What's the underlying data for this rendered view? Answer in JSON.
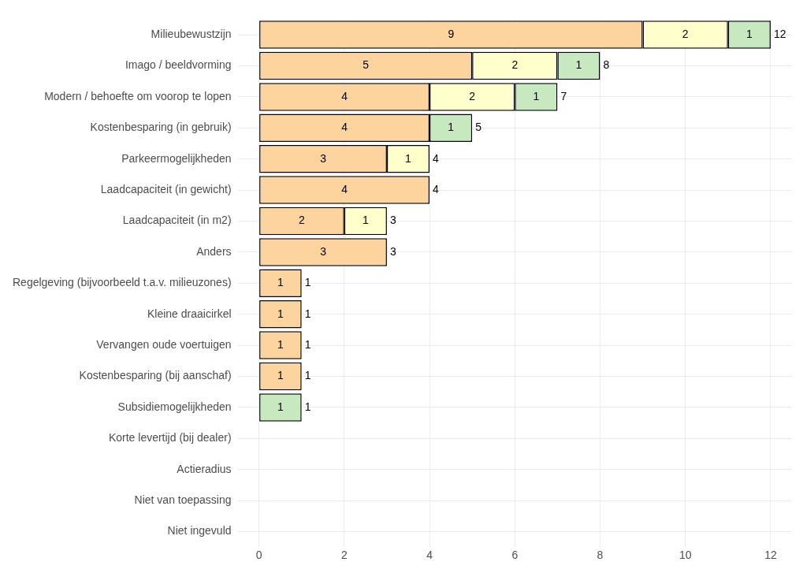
{
  "chart_data": {
    "type": "bar",
    "orientation": "horizontal",
    "stacked": true,
    "data_labels": true,
    "grid": true,
    "legend": false,
    "categories": [
      "Milieubewustzijn",
      "Imago / beeldvorming",
      "Modern / behoefte om voorop te lopen",
      "Kostenbesparing (in gebruik)",
      "Parkeermogelijkheden",
      "Laadcapaciteit (in gewicht)",
      "Laadcapaciteit (in m2)",
      "Anders",
      "Regelgeving (bijvoorbeeld t.a.v. milieuzones)",
      "Kleine draaicirkel",
      "Vervangen oude voertuigen",
      "Kostenbesparing (bij aanschaf)",
      "Subsidiemogelijkheden",
      "Korte levertijd (bij dealer)",
      "Actieradius",
      "Niet van toepassing",
      "Niet ingevuld"
    ],
    "series": [
      {
        "color": "#fdd49e",
        "values": [
          9,
          5,
          4,
          4,
          3,
          4,
          2,
          3,
          1,
          1,
          1,
          1,
          null,
          null,
          null,
          null,
          null
        ]
      },
      {
        "color": "#ffffcc",
        "values": [
          2,
          2,
          2,
          null,
          1,
          null,
          1,
          null,
          null,
          null,
          null,
          null,
          null,
          null,
          null,
          null,
          null
        ]
      },
      {
        "color": "#c7e9c0",
        "values": [
          1,
          1,
          1,
          1,
          null,
          null,
          null,
          null,
          null,
          null,
          null,
          null,
          1,
          null,
          null,
          null,
          null
        ]
      }
    ],
    "totals": [
      "12",
      "8",
      "7",
      "5",
      "4",
      "4",
      "3",
      "3",
      "1",
      "1",
      "1",
      "1",
      "1",
      null,
      null,
      null,
      null
    ],
    "xlim": [
      -0.5,
      12.5
    ],
    "xticks": [
      0,
      2,
      4,
      6,
      8,
      10,
      12
    ]
  }
}
